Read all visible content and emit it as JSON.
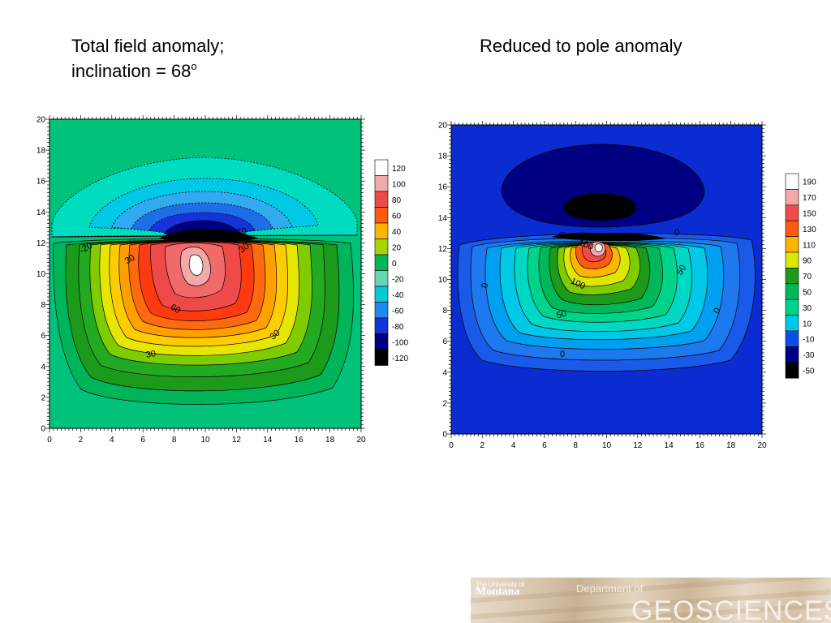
{
  "titles": {
    "left_line1": "Total field anomaly;",
    "left_line2": "inclination = 68",
    "left_sup": "o",
    "right": "Reduced to pole anomaly"
  },
  "chart_data": [
    {
      "type": "heatmap",
      "subtype": "filled-contour",
      "x_ticks": [
        0,
        2,
        4,
        6,
        8,
        10,
        12,
        14,
        16,
        18,
        20
      ],
      "y_ticks": [
        0,
        2,
        4,
        6,
        8,
        10,
        12,
        14,
        16,
        18,
        20
      ],
      "xlim": [
        0,
        20
      ],
      "ylim": [
        0,
        20
      ],
      "legend": {
        "placement": "right",
        "levels": [
          "120",
          "100",
          "80",
          "60",
          "40",
          "20",
          "0",
          "-20",
          "-40",
          "-60",
          "-80",
          "-100",
          "-120"
        ],
        "colors": [
          "#ffffff",
          "#f4a8a8",
          "#ef4a4a",
          "#ff5a10",
          "#ffb400",
          "#a8d400",
          "#00b85a",
          "#66d6b0",
          "#00c8d4",
          "#1e8cf0",
          "#1433d8",
          "#000082",
          "#000000"
        ]
      },
      "contour_labels": [
        "-20",
        "30",
        "30",
        "60",
        "30",
        "30",
        "70"
      ],
      "features": {
        "positive_peak": {
          "x": 9.5,
          "y": 10.8,
          "value": 120
        },
        "negative_trough": {
          "x": 9.5,
          "y": 12.8,
          "value": -120
        },
        "background_value": -20
      }
    },
    {
      "type": "heatmap",
      "subtype": "filled-contour",
      "x_ticks": [
        0,
        2,
        4,
        6,
        8,
        10,
        12,
        14,
        16,
        18,
        20
      ],
      "y_ticks": [
        0,
        2,
        4,
        6,
        8,
        10,
        12,
        14,
        16,
        18,
        20
      ],
      "xlim": [
        0,
        20
      ],
      "ylim": [
        0,
        20
      ],
      "legend": {
        "placement": "right",
        "levels": [
          "190",
          "170",
          "150",
          "130",
          "110",
          "90",
          "70",
          "50",
          "30",
          "10",
          "-10",
          "-30",
          "-50"
        ],
        "colors": [
          "#ffffff",
          "#f4a8a8",
          "#ef4a4a",
          "#ff5a10",
          "#ffb400",
          "#dce800",
          "#1c9a1c",
          "#00b85a",
          "#00d48a",
          "#00c8e6",
          "#0a4ee6",
          "#000082",
          "#000000"
        ]
      },
      "contour_labels": [
        "0",
        "100",
        "50",
        "0",
        "0",
        "50",
        "100",
        "0",
        "0"
      ],
      "features": {
        "positive_peak": {
          "x": 9.5,
          "y": 12,
          "value": 190
        },
        "negative_trough": {
          "x": 9.5,
          "y": 14.6,
          "value": -50
        },
        "background_value": -10
      }
    }
  ],
  "logo": {
    "university": "The University of",
    "montana": "Montana",
    "department": "Department of",
    "geosciences": "GEOSCIENCES"
  }
}
